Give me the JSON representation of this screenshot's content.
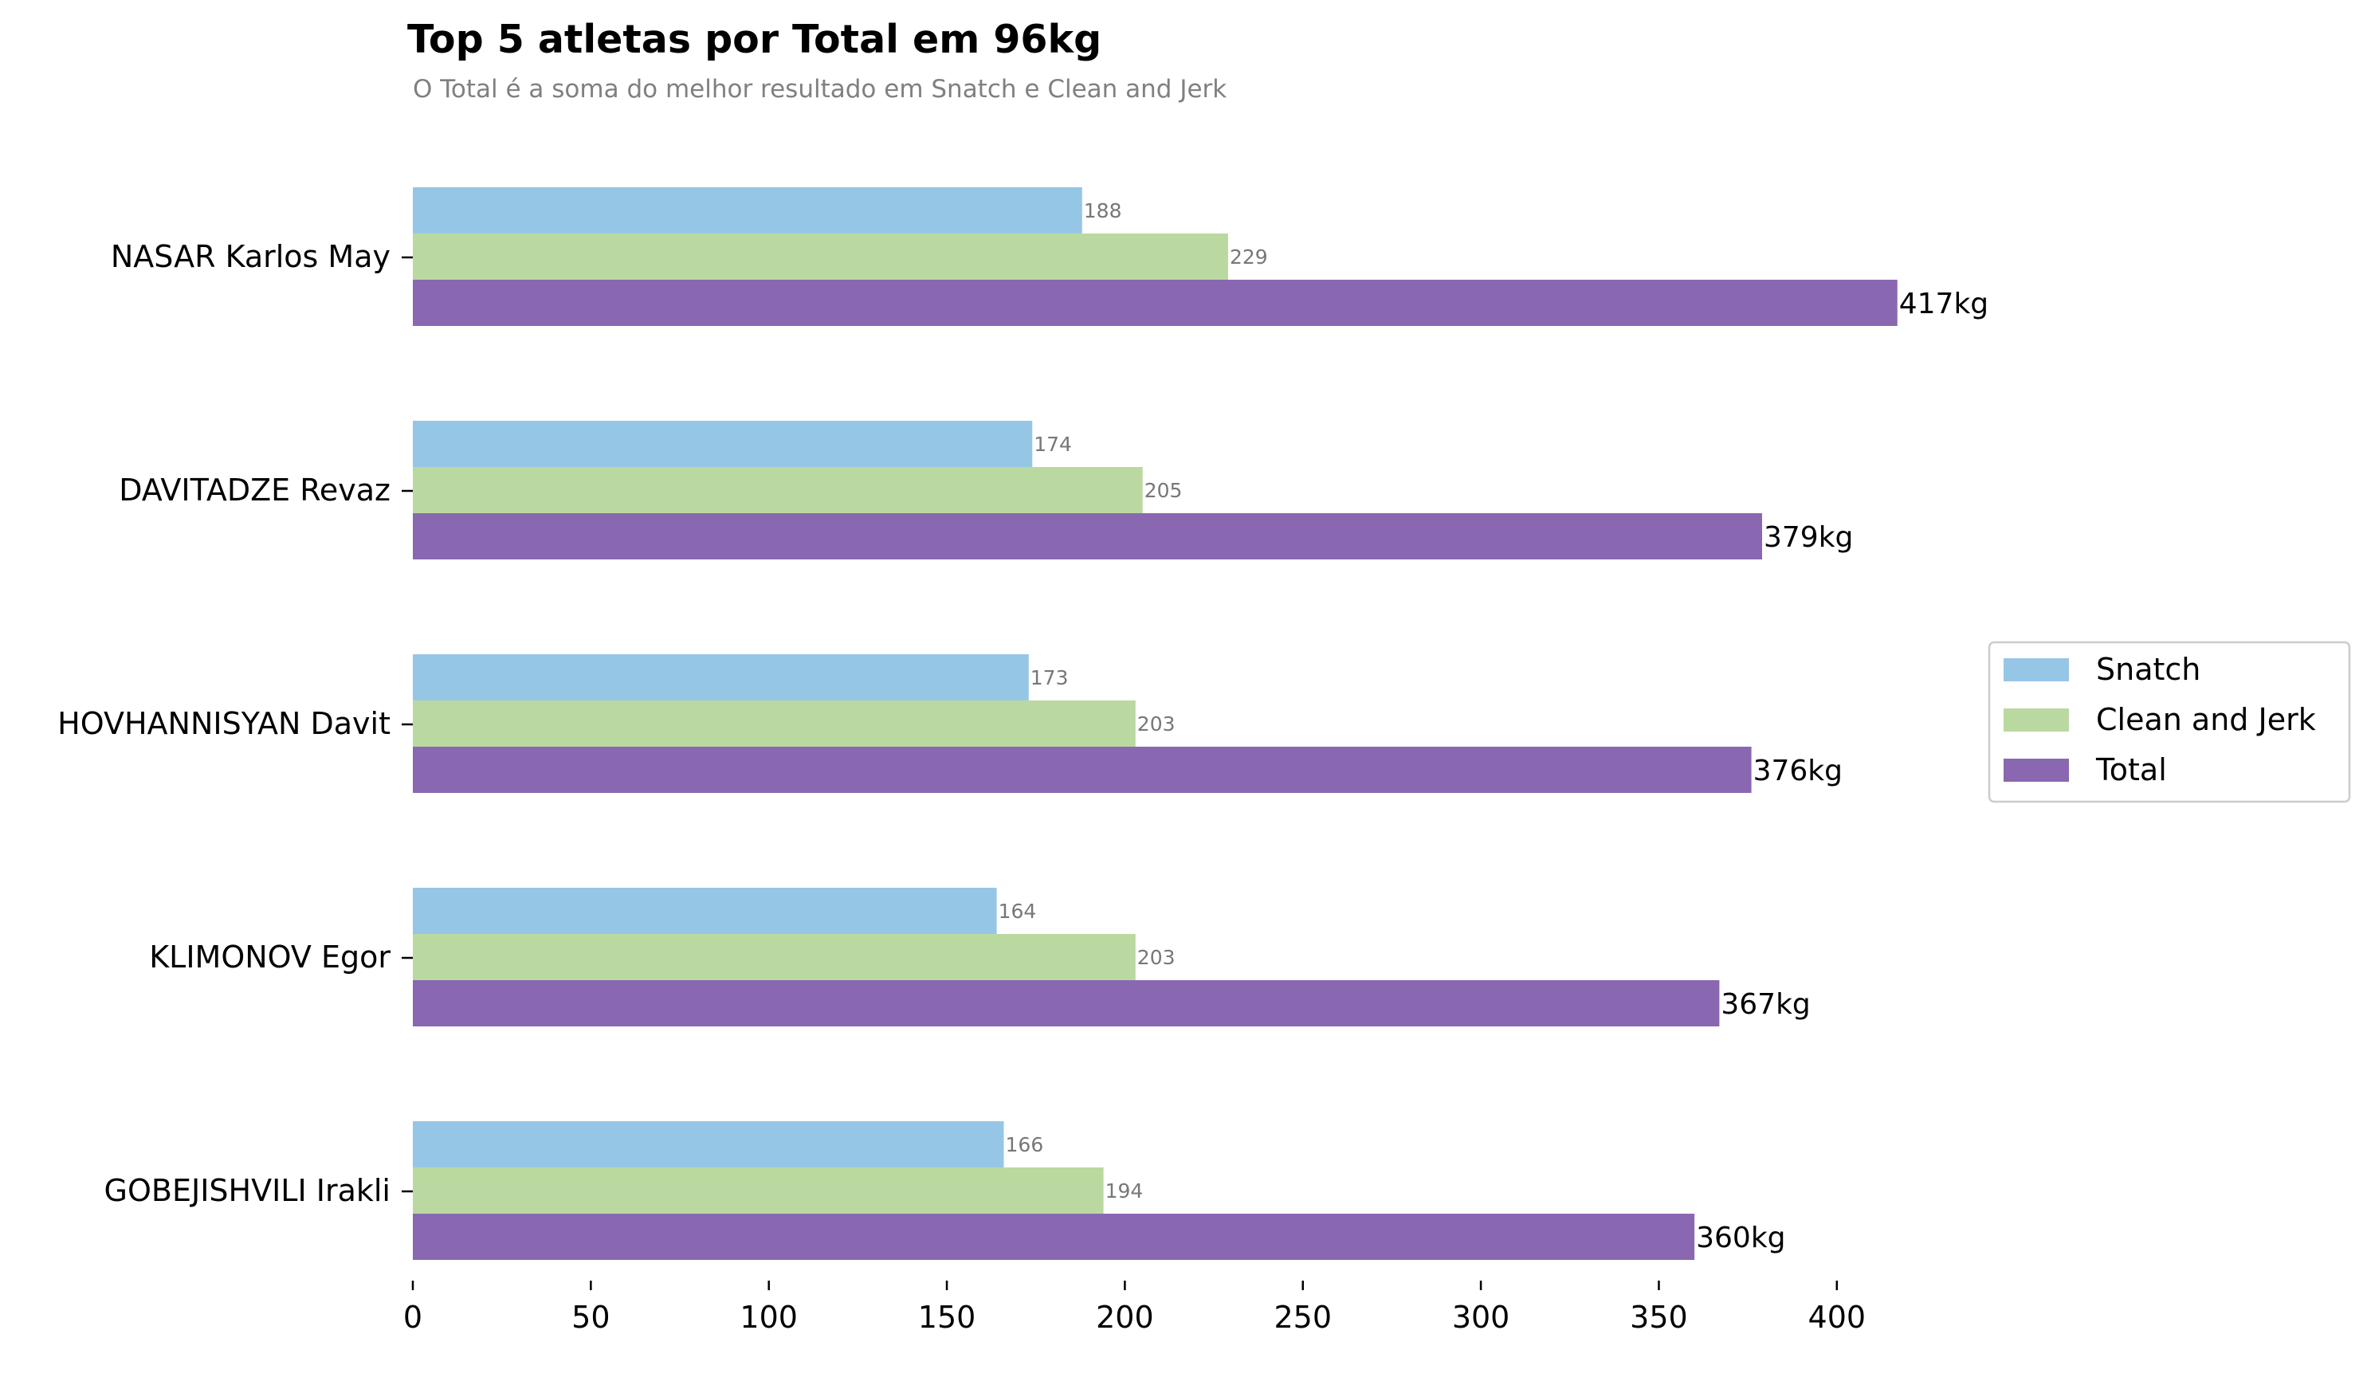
{
  "chart_data": {
    "type": "bar",
    "orientation": "horizontal",
    "title": "Top 5 atletas por Total em 96kg",
    "subtitle": "O Total é a soma do melhor resultado em Snatch e Clean and Jerk",
    "xlabel": "",
    "ylabel": "",
    "xlim": [
      0,
      425
    ],
    "xticks": [
      0,
      50,
      100,
      150,
      200,
      250,
      300,
      350,
      400
    ],
    "grid": false,
    "legend_position": "right",
    "categories": [
      "NASAR Karlos May",
      "DAVITADZE Revaz",
      "HOVHANNISYAN Davit",
      "KLIMONOV Egor",
      "GOBEJISHVILI Irakli"
    ],
    "series": [
      {
        "name": "Snatch",
        "color": "#96c6e6",
        "values": [
          188,
          174,
          173,
          164,
          166
        ],
        "labels": [
          "188",
          "174",
          "173",
          "164",
          "166"
        ]
      },
      {
        "name": "Clean and Jerk",
        "color": "#bad9a1",
        "values": [
          229,
          205,
          203,
          203,
          194
        ],
        "labels": [
          "229",
          "205",
          "203",
          "203",
          "194"
        ]
      },
      {
        "name": "Total",
        "color": "#8a67b1",
        "values": [
          417,
          379,
          376,
          367,
          360
        ],
        "labels": [
          "417kg",
          "379kg",
          "376kg",
          "367kg",
          "360kg"
        ]
      }
    ]
  }
}
